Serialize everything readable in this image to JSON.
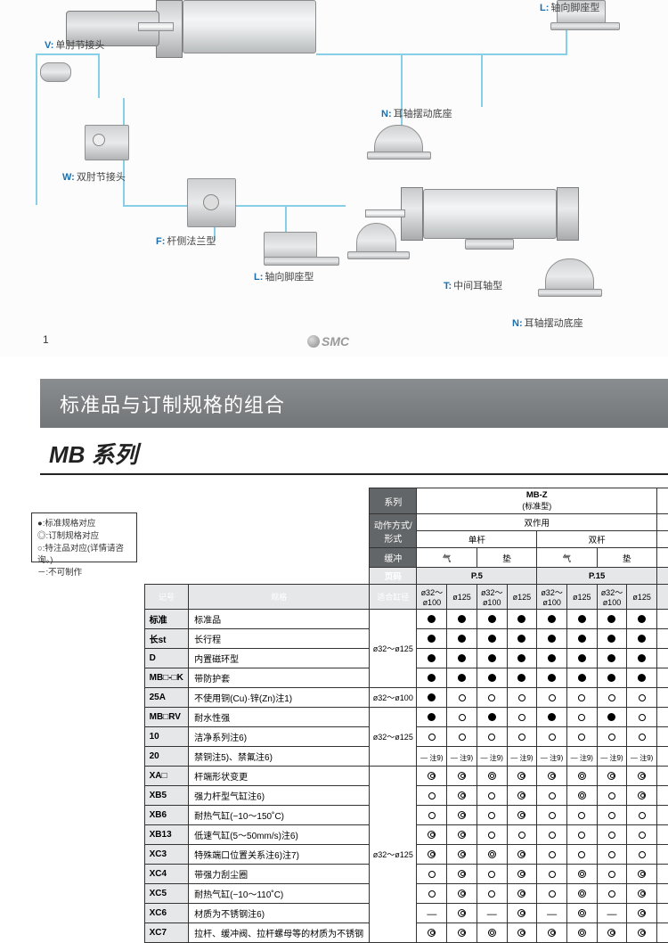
{
  "diagram": {
    "callouts": {
      "V": {
        "prefix": "V:",
        "text": "单肘节接头"
      },
      "W": {
        "prefix": "W:",
        "text": "双肘节接头"
      },
      "F": {
        "prefix": "F:",
        "text": "杆侧法兰型"
      },
      "L1": {
        "prefix": "L:",
        "text": "轴向脚座型"
      },
      "L2": {
        "prefix": "L:",
        "text": "轴向脚座型"
      },
      "N1": {
        "prefix": "N:",
        "text": "耳轴摆动底座"
      },
      "N2": {
        "prefix": "N:",
        "text": "耳轴摆动底座"
      },
      "T": {
        "prefix": "T:",
        "text": "中间耳轴型"
      }
    },
    "logo": "SMC",
    "page_no": "1",
    "colors": {
      "pipe": "#86cfe6",
      "metal": "#d8dadb",
      "label_key": "#1b6fae"
    }
  },
  "banner_title": "标准品与订制规格的组合",
  "series_title": "MB 系列",
  "legend": {
    "l1": "●:标准规格对应",
    "l2": "◎:订制规格对应",
    "l3": "○:特注品对应(详情请咨询。)",
    "l4": "－:不可制作"
  },
  "header": {
    "row_series": "系列",
    "row_action": "动作方式/形式",
    "row_cushion": "缓冲",
    "row_page": "页码",
    "series_name": "MB-Z",
    "series_sub": "(标准型)",
    "action": "双作用",
    "rod_single": "单杆",
    "rod_double": "双杆",
    "cushion_air": "气",
    "cushion_pad": "垫",
    "page_p5": "P.5",
    "page_p15": "P.15"
  },
  "header2": {
    "code": "记号",
    "spec": "规格",
    "fit": "适合缸径"
  },
  "bores": [
    "ø32～ø100",
    "ø125",
    "ø32～ø100",
    "ø125",
    "ø32～ø100",
    "ø125",
    "ø32～ø100",
    "ø125"
  ],
  "fits": {
    "g1": "ø32～ø125",
    "g2": "ø32～ø100",
    "g3": "ø32～ø125",
    "g4": "ø32～ø125"
  },
  "rows": [
    {
      "code": "标准",
      "spec": "标准品",
      "fitref": "g1",
      "sym": [
        "f",
        "f",
        "f",
        "f",
        "f",
        "f",
        "f",
        "f"
      ]
    },
    {
      "code": "长st",
      "spec": "长行程",
      "fitref": "g1",
      "sym": [
        "f",
        "f",
        "f",
        "f",
        "f",
        "f",
        "f",
        "f"
      ]
    },
    {
      "code": "D",
      "spec": "内置磁环型",
      "fitref": "g1",
      "sym": [
        "f",
        "f",
        "f",
        "f",
        "f",
        "f",
        "f",
        "f"
      ]
    },
    {
      "code": "MB□-□K",
      "spec": "带防护套",
      "fitref": "g1",
      "sym": [
        "f",
        "f",
        "f",
        "f",
        "f",
        "f",
        "f",
        "f"
      ]
    },
    {
      "code": "25A",
      "spec": "不使用铜(Cu)·锌(Zn)注1)",
      "fitref": "g2",
      "sym": [
        "f",
        "o",
        "o",
        "o",
        "o",
        "o",
        "o",
        "o"
      ]
    },
    {
      "code": "MB□RV",
      "spec": "耐水性强",
      "fitref": "g3",
      "sym": [
        "f",
        "o",
        "f",
        "o",
        "f",
        "o",
        "f",
        "o"
      ]
    },
    {
      "code": "10",
      "spec": "洁净系列注6)",
      "fitref": "g3",
      "sym": [
        "o",
        "o",
        "o",
        "o",
        "o",
        "o",
        "o",
        "o"
      ]
    },
    {
      "code": "20",
      "spec": "禁铜注5)、禁氟注6)",
      "fitref": "g3",
      "sym": [
        "n",
        "n",
        "n",
        "n",
        "n",
        "n",
        "n",
        "n"
      ]
    },
    {
      "code": "XA□",
      "spec": "杆端形状变更",
      "fitref": "g4",
      "sym": [
        "d",
        "d",
        "d",
        "d",
        "d",
        "d",
        "d",
        "d"
      ]
    },
    {
      "code": "XB5",
      "spec": "强力杆型气缸注6)",
      "fitref": "g4",
      "sym": [
        "o",
        "d",
        "o",
        "d",
        "o",
        "d",
        "o",
        "d"
      ]
    },
    {
      "code": "XB6",
      "spec": "耐热气缸(−10～150˚C)",
      "fitref": "g4",
      "sym": [
        "o",
        "d",
        "o",
        "d",
        "o",
        "o",
        "o",
        "o"
      ]
    },
    {
      "code": "XB13",
      "spec": "低速气缸(5～50mm/s)注6)",
      "fitref": "g4",
      "sym": [
        "d",
        "d",
        "o",
        "o",
        "o",
        "o",
        "o",
        "o"
      ]
    },
    {
      "code": "XC3",
      "spec": "特殊端口位置关系注6)注7)",
      "fitref": "g4",
      "sym": [
        "d",
        "d",
        "d",
        "d",
        "o",
        "o",
        "o",
        "o"
      ]
    },
    {
      "code": "XC4",
      "spec": "带强力刮尘圈",
      "fitref": "g4",
      "sym": [
        "o",
        "d",
        "o",
        "d",
        "o",
        "d",
        "o",
        "d"
      ]
    },
    {
      "code": "XC5",
      "spec": "耐热气缸(−10～110˚C)",
      "fitref": "g4",
      "sym": [
        "o",
        "d",
        "o",
        "d",
        "o",
        "d",
        "o",
        "d"
      ]
    },
    {
      "code": "XC6",
      "spec": "材质为不锈钢注6)",
      "fitref": "g4",
      "sym": [
        "-",
        "d",
        "-",
        "d",
        "-",
        "d",
        "-",
        "d"
      ]
    },
    {
      "code": "XC7",
      "spec": "拉杆、缓冲阀、拉杆螺母等的材质为不锈钢",
      "fitref": "g4",
      "sym": [
        "d",
        "d",
        "d",
        "d",
        "d",
        "d",
        "d",
        "d"
      ]
    }
  ],
  "note_text": "— 注9)"
}
